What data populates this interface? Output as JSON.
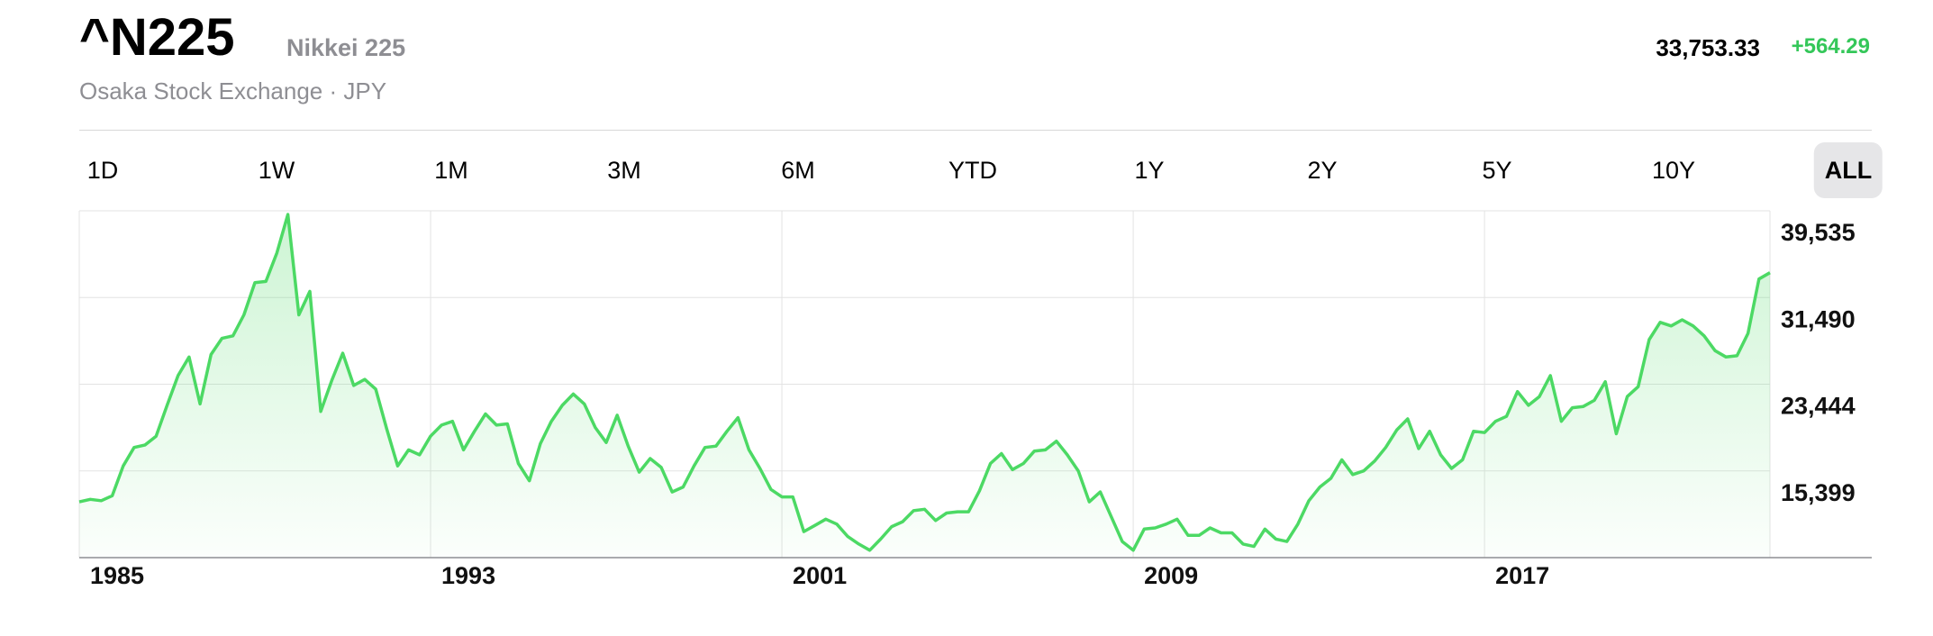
{
  "header": {
    "symbol": "^N225",
    "name": "Nikkei 225",
    "exchange": "Osaka Stock Exchange · JPY",
    "price": "33,753.33",
    "change": "+564.29"
  },
  "ranges": [
    "1D",
    "1W",
    "1M",
    "3M",
    "6M",
    "YTD",
    "1Y",
    "2Y",
    "5Y",
    "10Y",
    "ALL"
  ],
  "selected_range": "ALL",
  "chart_data": {
    "type": "line",
    "color": "#4cd964",
    "grid": true,
    "x": [
      1985,
      1985.25,
      1985.5,
      1985.75,
      1986,
      1986.25,
      1986.5,
      1986.75,
      1987,
      1987.25,
      1987.5,
      1987.75,
      1988,
      1988.25,
      1988.5,
      1988.75,
      1989,
      1989.25,
      1989.5,
      1989.75,
      1990,
      1990.25,
      1990.5,
      1990.75,
      1991,
      1991.25,
      1991.5,
      1991.75,
      1992,
      1992.25,
      1992.5,
      1992.75,
      1993,
      1993.25,
      1993.5,
      1993.75,
      1994,
      1994.25,
      1994.5,
      1994.75,
      1995,
      1995.25,
      1995.5,
      1995.75,
      1996,
      1996.25,
      1996.5,
      1996.75,
      1997,
      1997.25,
      1997.5,
      1997.75,
      1998,
      1998.25,
      1998.5,
      1998.75,
      1999,
      1999.25,
      1999.5,
      1999.75,
      2000,
      2000.25,
      2000.5,
      2000.75,
      2001,
      2001.25,
      2001.5,
      2001.75,
      2002,
      2002.25,
      2002.5,
      2002.75,
      2003,
      2003.25,
      2003.5,
      2003.75,
      2004,
      2004.25,
      2004.5,
      2004.75,
      2005,
      2005.25,
      2005.5,
      2005.75,
      2006,
      2006.25,
      2006.5,
      2006.75,
      2007,
      2007.25,
      2007.5,
      2007.75,
      2008,
      2008.25,
      2008.5,
      2008.75,
      2009,
      2009.25,
      2009.5,
      2009.75,
      2010,
      2010.25,
      2010.5,
      2010.75,
      2011,
      2011.25,
      2011.5,
      2011.75,
      2012,
      2012.25,
      2012.5,
      2012.75,
      2013,
      2013.25,
      2013.5,
      2013.75,
      2014,
      2014.25,
      2014.5,
      2014.75,
      2015,
      2015.25,
      2015.5,
      2015.75,
      2016,
      2016.25,
      2016.5,
      2016.75,
      2017,
      2017.25,
      2017.5,
      2017.75,
      2018,
      2018.25,
      2018.5,
      2018.75,
      2019,
      2019.25,
      2019.5,
      2019.75,
      2020,
      2020.25,
      2020.5,
      2020.75,
      2021,
      2021.25,
      2021.5,
      2021.75,
      2022,
      2022.25,
      2022.5,
      2022.75,
      2023,
      2023.25,
      2023.5
    ],
    "values": [
      12530,
      12760,
      12640,
      13100,
      15860,
      17580,
      17810,
      18620,
      21490,
      24250,
      25970,
      21610,
      26200,
      27700,
      27930,
      29880,
      32870,
      32980,
      35630,
      39190,
      29880,
      32060,
      20920,
      23790,
      26320,
      23330,
      23900,
      22990,
      19310,
      15860,
      17350,
      16890,
      18620,
      19650,
      20000,
      17350,
      19080,
      20690,
      19650,
      19770,
      16090,
      14480,
      17930,
      20000,
      21490,
      22530,
      21610,
      19420,
      18040,
      20570,
      17700,
      15290,
      16550,
      15740,
      13450,
      13910,
      15860,
      17580,
      17700,
      19080,
      20340,
      17350,
      15630,
      13680,
      12990,
      12990,
      9770,
      10340,
      10920,
      10460,
      9310,
      8620,
      8040,
      9080,
      10230,
      10690,
      11720,
      11840,
      10800,
      11490,
      11610,
      11610,
      13560,
      16090,
      17010,
      15520,
      16090,
      17240,
      17350,
      18160,
      16890,
      15400,
      12530,
      13450,
      11150,
      8850,
      8040,
      10000,
      10110,
      10460,
      10920,
      9420,
      9420,
      10110,
      9650,
      9650,
      8620,
      8390,
      10000,
      9080,
      8850,
      10460,
      12640,
      13910,
      14710,
      16430,
      15060,
      15400,
      16320,
      17580,
      19190,
      20230,
      17470,
      19080,
      16890,
      15630,
      16430,
      19080,
      18960,
      20000,
      20460,
      22760,
      21490,
      22300,
      24250,
      20000,
      21260,
      21380,
      21950,
      23680,
      18850,
      22300,
      23220,
      27580,
      29190,
      28850,
      29420,
      28850,
      27930,
      26550,
      25970,
      26090,
      28160,
      33210,
      33790
    ],
    "xlim": [
      1985,
      2023.5
    ],
    "xticks": [
      1985,
      1993,
      2001,
      2009,
      2017
    ],
    "ylim": [
      7354,
      39535
    ],
    "yticks": [
      {
        "value": 15399,
        "label": "15,399"
      },
      {
        "value": 23444,
        "label": "23,444"
      },
      {
        "value": 31490,
        "label": "31,490"
      },
      {
        "value": 39535,
        "label": "39,535"
      }
    ]
  }
}
